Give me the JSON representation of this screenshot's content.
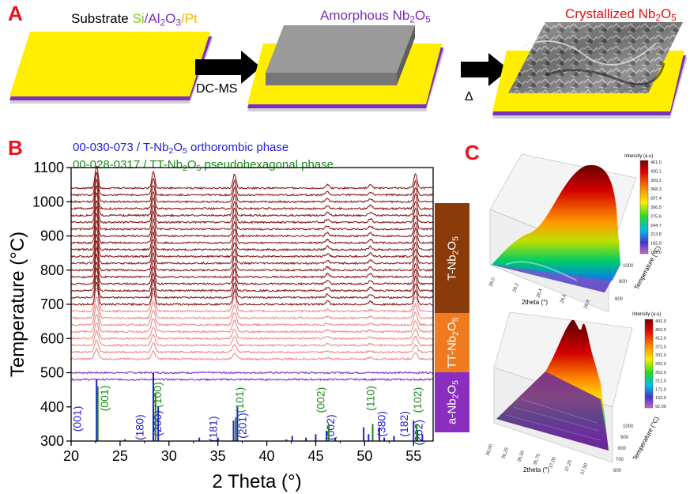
{
  "panel_a": {
    "letter": "A",
    "substrate": {
      "prefix": "Substrate ",
      "si": "Si",
      "sep1": "/",
      "al": "Al",
      "al_sub": "2",
      "o": "O",
      "o_sub": "3",
      "sep2": "/",
      "pt": "Pt"
    },
    "amorphous": {
      "text": "Amorphous Nb",
      "sub1": "2",
      "o": "O",
      "sub2": "5"
    },
    "crystallized": {
      "text": "Crystallized Nb",
      "sub1": "2",
      "o": "O",
      "sub2": "5"
    },
    "arrow1_label": "DC-MS",
    "arrow2_label": "Δ",
    "colors": {
      "substrate_title": "#000000",
      "si": "#7ccd1b",
      "al2o3": "#7b2fbf",
      "pt": "#f2b800",
      "amorphous": "#7b2fbf",
      "crystallized": "#e01010",
      "pt_layer": "#ffee00",
      "al_layer": "#7b2fbf",
      "film": "#8a8a8a"
    }
  },
  "panel_b": {
    "letter": "B",
    "legend_blue": {
      "pre": "00-030-073 / T-Nb",
      "s1": "2",
      "mid": "O",
      "s2": "5",
      "post": " orthorombic phase",
      "color": "#2020dd"
    },
    "legend_green": {
      "pre": "00-028-0317 / TT-Nb",
      "s1": "2",
      "mid": "O",
      "s2": "5",
      "post": " pseudohexagonal phase",
      "color": "#1a8a1a"
    },
    "phase_bars": [
      {
        "label": "T-Nb",
        "s1": "2",
        "mid": "O",
        "s2": "5",
        "color": "#8b3a0a"
      },
      {
        "label": "TT-Nb",
        "s1": "2",
        "mid": "O",
        "s2": "5",
        "color": "#f07a1e"
      },
      {
        "label": "a-Nb",
        "s1": "2",
        "mid": "O",
        "s2": "5",
        "color": "#8a2ec0"
      }
    ]
  },
  "chart_data": {
    "type": "line",
    "xlabel": "2 Theta (°)",
    "ylabel": "Temperature (°C)",
    "xlim": [
      20,
      57
    ],
    "ylim": [
      300,
      1100
    ],
    "xticks": [
      20,
      25,
      30,
      35,
      40,
      45,
      50,
      55
    ],
    "yticks": [
      300,
      400,
      500,
      600,
      700,
      800,
      900,
      1000,
      1100
    ],
    "temperatures_amorphous": [
      500,
      480
    ],
    "temperatures_tt": [
      540,
      560,
      580,
      600,
      620,
      640,
      660,
      680
    ],
    "temperatures_t": [
      700,
      720,
      740,
      760,
      780,
      800,
      820,
      840,
      860,
      880,
      900,
      920,
      940,
      960,
      980,
      1000,
      1020,
      1040
    ],
    "peaks_main": [
      22.6,
      28.4,
      36.7,
      55.2
    ],
    "peaks_minor": [
      46.2,
      50.6
    ],
    "series_colors": {
      "amorphous": "#8a2ec0",
      "tt": "#f08a8a",
      "t": "#8b1a1a"
    },
    "reference_blue": {
      "color": "#2020cc",
      "lines": [
        [
          22.6,
          480
        ],
        [
          25.5,
          305
        ],
        [
          28.4,
          500
        ],
        [
          28.9,
          400
        ],
        [
          33.1,
          310
        ],
        [
          35.0,
          310
        ],
        [
          36.6,
          360
        ],
        [
          37.0,
          400
        ],
        [
          42.0,
          305
        ],
        [
          42.6,
          315
        ],
        [
          44.0,
          310
        ],
        [
          45.0,
          320
        ],
        [
          46.1,
          330
        ],
        [
          47.0,
          310
        ],
        [
          49.9,
          340
        ],
        [
          50.4,
          320
        ],
        [
          51.5,
          340
        ],
        [
          52.0,
          310
        ],
        [
          53.0,
          315
        ],
        [
          55.0,
          360
        ],
        [
          55.4,
          330
        ],
        [
          55.9,
          320
        ]
      ],
      "labels": [
        [
          "(001)",
          21.0,
          365
        ],
        [
          "(180)",
          27.4,
          340
        ],
        [
          "(200)",
          29.2,
          352
        ],
        [
          "(181)",
          34.9,
          335
        ],
        [
          "(201)",
          37.9,
          345
        ],
        [
          "(002)",
          46.9,
          340
        ],
        [
          "(380)",
          52.1,
          350
        ],
        [
          "(182)",
          54.4,
          350
        ],
        [
          "(202)",
          55.9,
          325
        ]
      ]
    },
    "reference_green": {
      "color": "#1a8a1a",
      "lines": [
        [
          22.6,
          460
        ],
        [
          28.5,
          440
        ],
        [
          36.7,
          370
        ],
        [
          46.2,
          350
        ],
        [
          50.7,
          350
        ],
        [
          55.2,
          350
        ]
      ],
      "labels": [
        [
          "(001)",
          23.8,
          425
        ],
        [
          "(100)",
          29.2,
          435
        ],
        [
          "(101)",
          37.6,
          420
        ],
        [
          "(002)",
          45.9,
          420
        ],
        [
          "(110)",
          51.0,
          425
        ],
        [
          "(102)",
          55.8,
          420
        ]
      ]
    }
  },
  "panel_c": {
    "letter": "C",
    "top": {
      "legend_title": "Intensity (a.u)",
      "values": [
        "461,0",
        "430,1",
        "399,2",
        "368,3",
        "337,4",
        "306,5",
        "275,6",
        "244,7",
        "213,8",
        "182,9",
        "152,0"
      ],
      "x_axis": "2theta (°)",
      "y_axis": "Temperature (°C)",
      "x_ticks": [
        "28,0",
        "28,2",
        "28,4",
        "28,6",
        "28,8"
      ],
      "y_ticks": [
        "600",
        "800",
        "1000"
      ]
    },
    "bottom": {
      "legend_title": "Intensity (a.u)",
      "values": [
        "492,0",
        "452,0",
        "412,0",
        "372,0",
        "332,0",
        "292,0",
        "252,0",
        "212,0",
        "172,0",
        "132,0",
        "92,00"
      ],
      "x_axis": "2theta (°)",
      "y_axis": "Temperature (°C)",
      "x_ticks": [
        "36,00",
        "36,25",
        "36,50",
        "36,75",
        "37,00",
        "37,25",
        "37,50"
      ],
      "y_ticks": [
        "600",
        "700",
        "800",
        "900",
        "1000"
      ]
    }
  }
}
